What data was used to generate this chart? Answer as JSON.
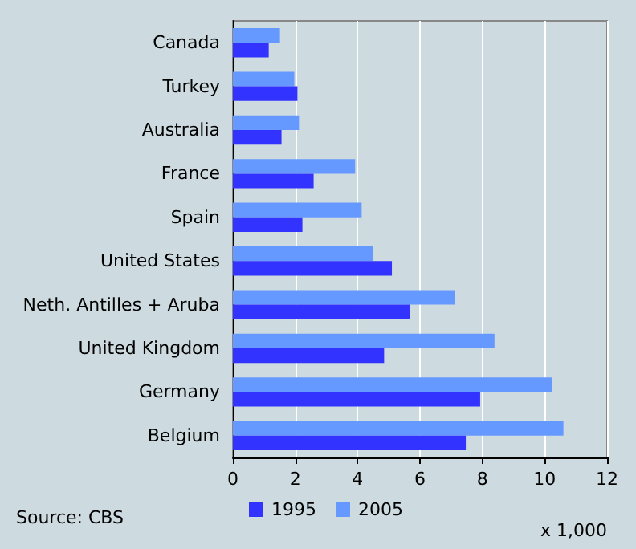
{
  "chart_data": {
    "type": "bar",
    "orientation": "horizontal",
    "categories": [
      "Canada",
      "Turkey",
      "Australia",
      "France",
      "Spain",
      "United States",
      "Neth. Antilles + Aruba",
      "United Kingdom",
      "Germany",
      "Belgium"
    ],
    "series": [
      {
        "name": "1995",
        "color": "#3333ff",
        "values": [
          1.15,
          2.07,
          1.56,
          2.59,
          2.23,
          5.1,
          5.67,
          4.85,
          7.93,
          7.47
        ]
      },
      {
        "name": "2005",
        "color": "#6699ff",
        "values": [
          1.51,
          1.97,
          2.12,
          3.92,
          4.13,
          4.49,
          7.11,
          8.39,
          10.24,
          10.6
        ]
      }
    ],
    "xlim": [
      0,
      12
    ],
    "xticks": [
      0,
      2,
      4,
      6,
      8,
      10,
      12
    ],
    "xlabel": "x 1,000",
    "grid": "x",
    "legend": "bottom",
    "annotations": [
      "Source: CBS"
    ]
  }
}
